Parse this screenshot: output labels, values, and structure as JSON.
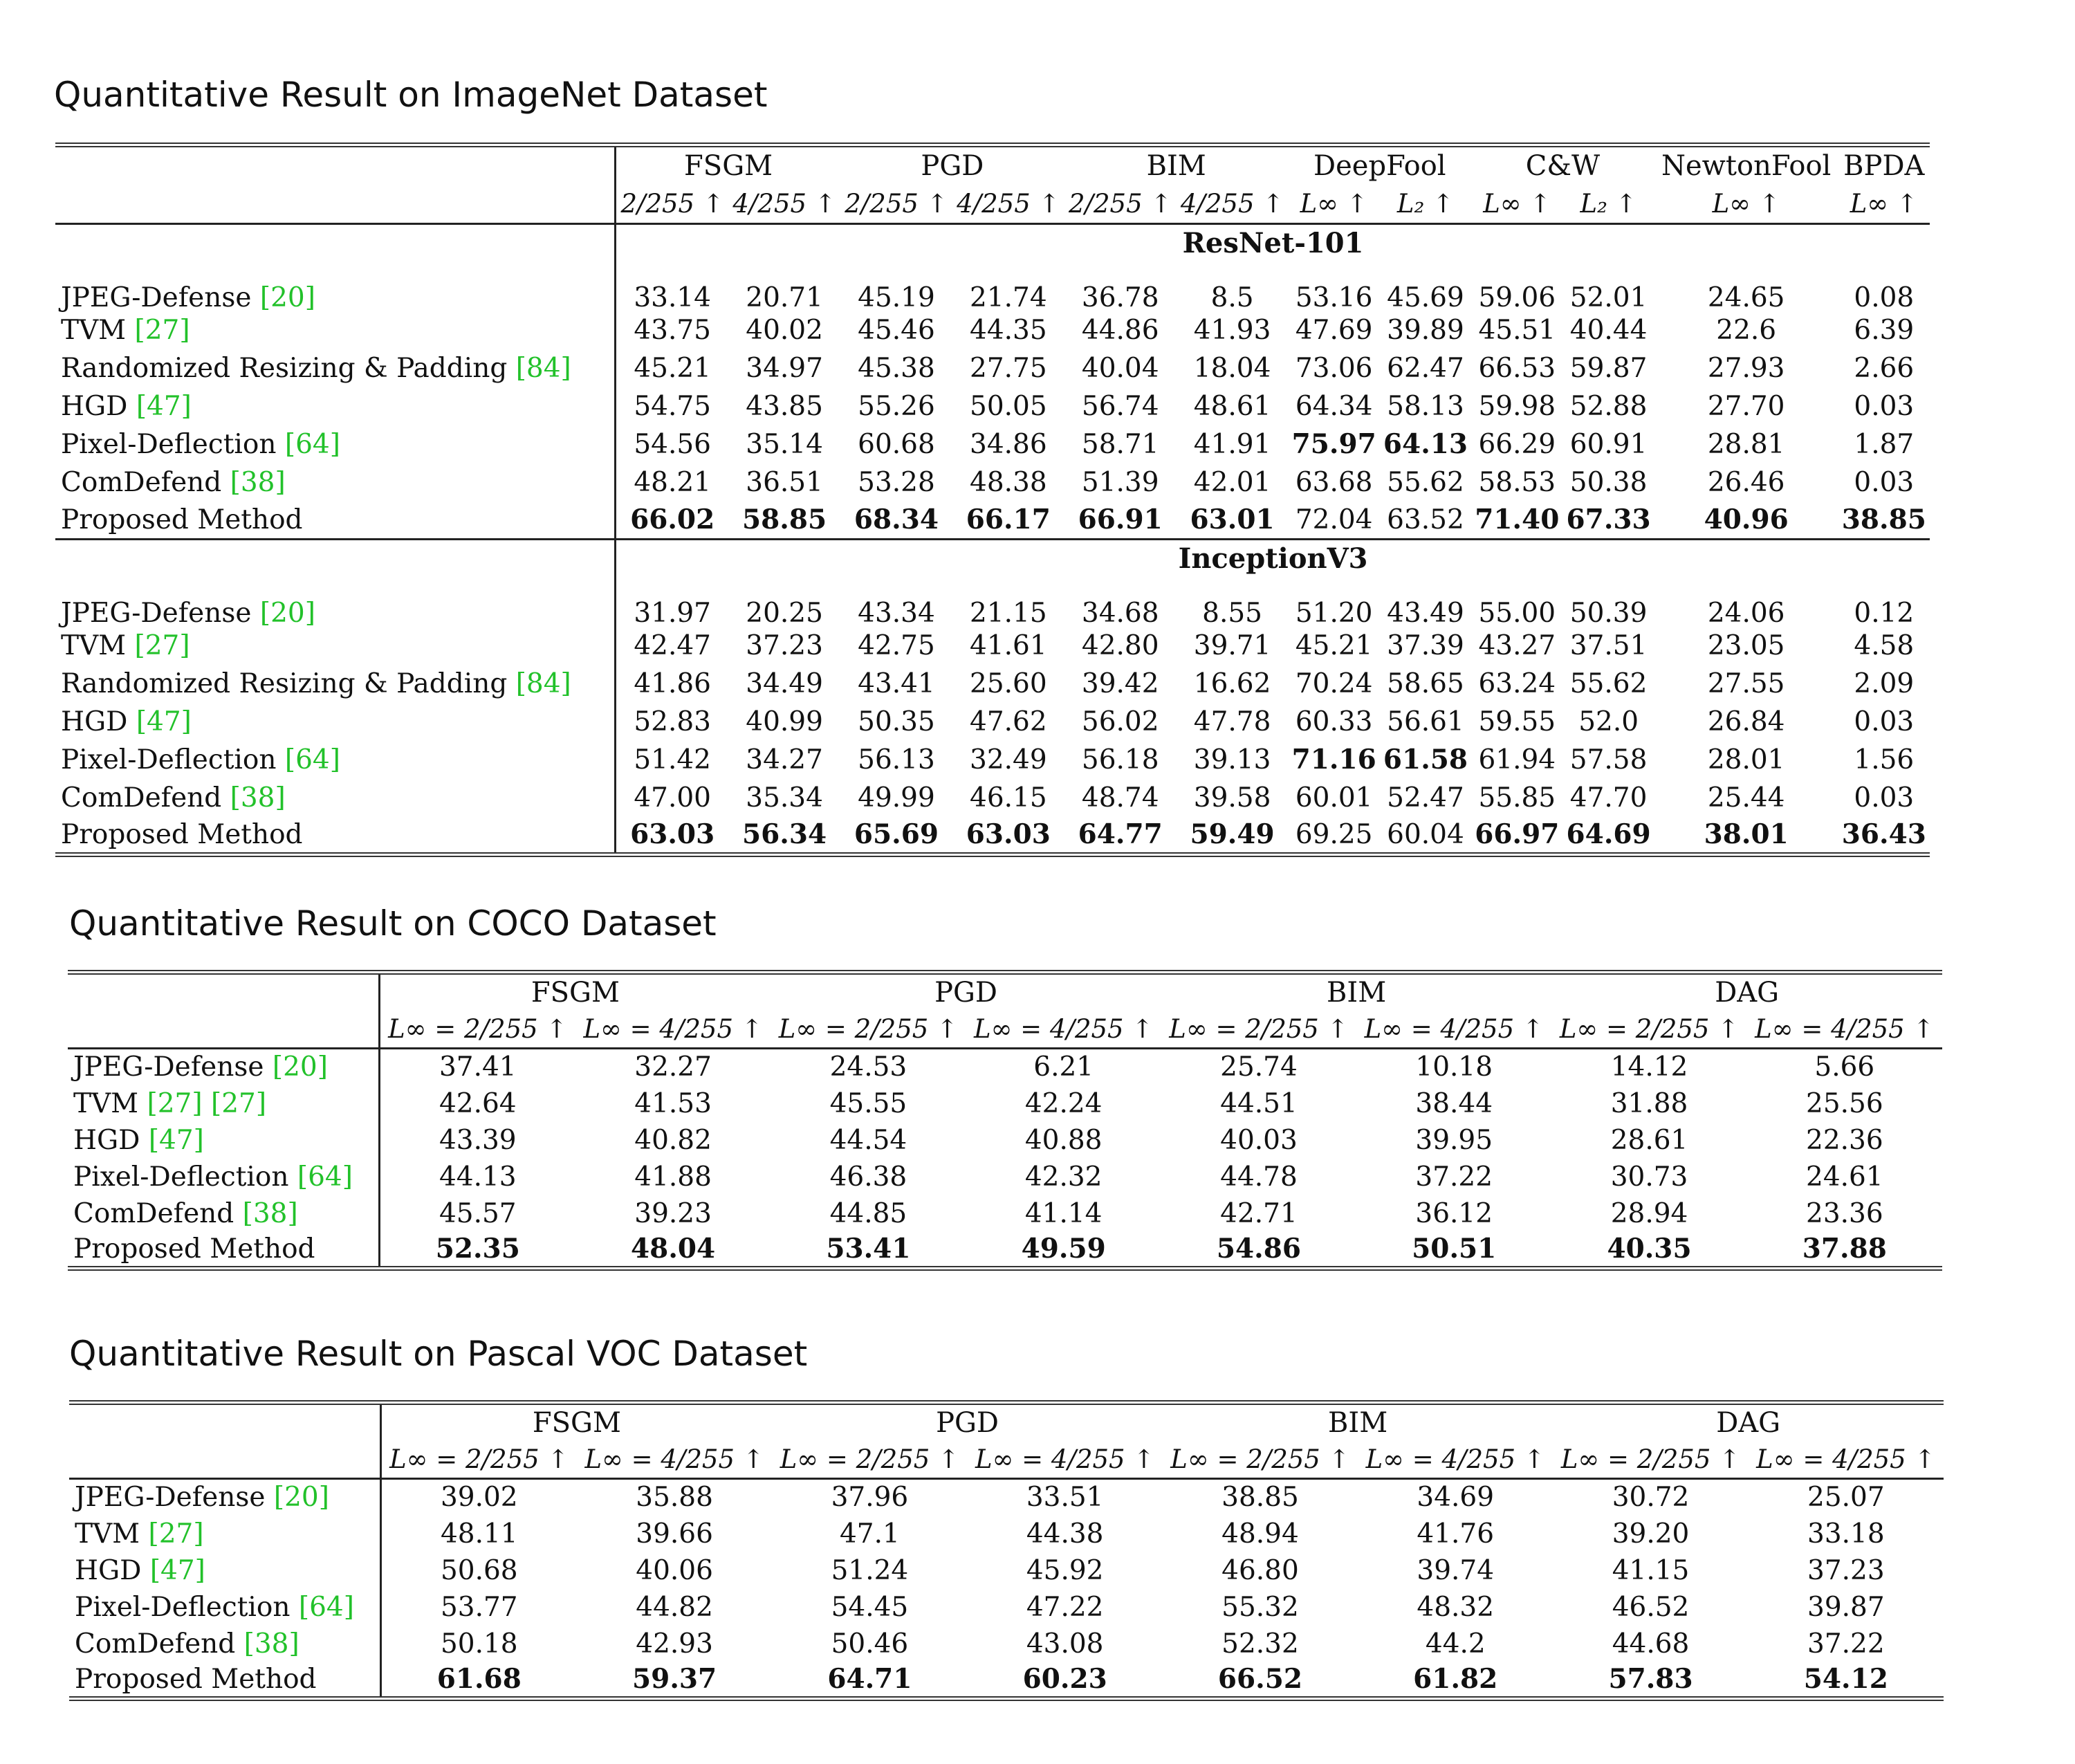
{
  "imagenet": {
    "title": "Quantitative Result on ImageNet Dataset",
    "groups": [
      "FSGM",
      "PGD",
      "BIM",
      "DeepFool",
      "C&W",
      "NewtonFool",
      "BPDA"
    ],
    "subheaders": [
      "2/255 ↑",
      "4/255 ↑",
      "2/255 ↑",
      "4/255 ↑",
      "2/255 ↑",
      "4/255 ↑",
      "L∞ ↑",
      "L₂ ↑",
      "L∞ ↑",
      "L₂ ↑",
      "L∞ ↑",
      "L∞ ↑"
    ],
    "blocks": [
      {
        "name": "ResNet-101",
        "rows": [
          {
            "method": "JPEG-Defense",
            "ref": "[20]",
            "values": [
              "33.14",
              "20.71",
              "45.19",
              "21.74",
              "36.78",
              "8.5",
              "53.16",
              "45.69",
              "59.06",
              "52.01",
              "24.65",
              "0.08"
            ]
          },
          {
            "method": "TVM",
            "ref": "[27]",
            "values": [
              "43.75",
              "40.02",
              "45.46",
              "44.35",
              "44.86",
              "41.93",
              "47.69",
              "39.89",
              "45.51",
              "40.44",
              "22.6",
              "6.39"
            ]
          },
          {
            "method": "Randomized Resizing & Padding",
            "ref": "[84]",
            "values": [
              "45.21",
              "34.97",
              "45.38",
              "27.75",
              "40.04",
              "18.04",
              "73.06",
              "62.47",
              "66.53",
              "59.87",
              "27.93",
              "2.66"
            ]
          },
          {
            "method": "HGD",
            "ref": "[47]",
            "values": [
              "54.75",
              "43.85",
              "55.26",
              "50.05",
              "56.74",
              "48.61",
              "64.34",
              "58.13",
              "59.98",
              "52.88",
              "27.70",
              "0.03"
            ]
          },
          {
            "method": "Pixel-Deflection",
            "ref": "[64]",
            "values": [
              "54.56",
              "35.14",
              "60.68",
              "34.86",
              "58.71",
              "41.91",
              "75.97",
              "64.13",
              "66.29",
              "60.91",
              "28.81",
              "1.87"
            ]
          },
          {
            "method": "ComDefend",
            "ref": "[38]",
            "values": [
              "48.21",
              "36.51",
              "53.28",
              "48.38",
              "51.39",
              "42.01",
              "63.68",
              "55.62",
              "58.53",
              "50.38",
              "26.46",
              "0.03"
            ]
          },
          {
            "method": "Proposed Method",
            "ref": "",
            "values": [
              "66.02",
              "58.85",
              "68.34",
              "66.17",
              "66.91",
              "63.01",
              "72.04",
              "63.52",
              "71.40",
              "67.33",
              "40.96",
              "38.85"
            ]
          }
        ]
      },
      {
        "name": "InceptionV3",
        "rows": [
          {
            "method": "JPEG-Defense",
            "ref": "[20]",
            "values": [
              "31.97",
              "20.25",
              "43.34",
              "21.15",
              "34.68",
              "8.55",
              "51.20",
              "43.49",
              "55.00",
              "50.39",
              "24.06",
              "0.12"
            ]
          },
          {
            "method": "TVM",
            "ref": "[27]",
            "values": [
              "42.47",
              "37.23",
              "42.75",
              "41.61",
              "42.80",
              "39.71",
              "45.21",
              "37.39",
              "43.27",
              "37.51",
              "23.05",
              "4.58"
            ]
          },
          {
            "method": "Randomized Resizing & Padding",
            "ref": "[84]",
            "values": [
              "41.86",
              "34.49",
              "43.41",
              "25.60",
              "39.42",
              "16.62",
              "70.24",
              "58.65",
              "63.24",
              "55.62",
              "27.55",
              "2.09"
            ]
          },
          {
            "method": "HGD",
            "ref": "[47]",
            "values": [
              "52.83",
              "40.99",
              "50.35",
              "47.62",
              "56.02",
              "47.78",
              "60.33",
              "56.61",
              "59.55",
              "52.0",
              "26.84",
              "0.03"
            ]
          },
          {
            "method": "Pixel-Deflection",
            "ref": "[64]",
            "values": [
              "51.42",
              "34.27",
              "56.13",
              "32.49",
              "56.18",
              "39.13",
              "71.16",
              "61.58",
              "61.94",
              "57.58",
              "28.01",
              "1.56"
            ]
          },
          {
            "method": "ComDefend",
            "ref": "[38]",
            "values": [
              "47.00",
              "35.34",
              "49.99",
              "46.15",
              "48.74",
              "39.58",
              "60.01",
              "52.47",
              "55.85",
              "47.70",
              "25.44",
              "0.03"
            ]
          },
          {
            "method": "Proposed Method",
            "ref": "",
            "values": [
              "63.03",
              "56.34",
              "65.69",
              "63.03",
              "64.77",
              "59.49",
              "69.25",
              "60.04",
              "66.97",
              "64.69",
              "38.01",
              "36.43"
            ]
          }
        ]
      }
    ]
  },
  "coco": {
    "title": "Quantitative Result on COCO Dataset",
    "groups": [
      "FSGM",
      "PGD",
      "BIM",
      "DAG"
    ],
    "subheaders": [
      "L∞ = 2/255 ↑",
      "L∞ = 4/255 ↑",
      "L∞ = 2/255 ↑",
      "L∞ = 4/255 ↑",
      "L∞ = 2/255 ↑",
      "L∞ = 4/255 ↑",
      "L∞ = 2/255 ↑",
      "L∞ = 4/255 ↑"
    ],
    "rows": [
      {
        "method": "JPEG-Defense",
        "ref": "[20]",
        "values": [
          "37.41",
          "32.27",
          "24.53",
          "6.21",
          "25.74",
          "10.18",
          "14.12",
          "5.66"
        ]
      },
      {
        "method": "TVM",
        "ref": "[27] [27]",
        "values": [
          "42.64",
          "41.53",
          "45.55",
          "42.24",
          "44.51",
          "38.44",
          "31.88",
          "25.56"
        ]
      },
      {
        "method": "HGD",
        "ref": "[47]",
        "values": [
          "43.39",
          "40.82",
          "44.54",
          "40.88",
          "40.03",
          "39.95",
          "28.61",
          "22.36"
        ]
      },
      {
        "method": "Pixel-Deflection",
        "ref": "[64]",
        "values": [
          "44.13",
          "41.88",
          "46.38",
          "42.32",
          "44.78",
          "37.22",
          "30.73",
          "24.61"
        ]
      },
      {
        "method": "ComDefend",
        "ref": "[38]",
        "values": [
          "45.57",
          "39.23",
          "44.85",
          "41.14",
          "42.71",
          "36.12",
          "28.94",
          "23.36"
        ]
      },
      {
        "method": "Proposed Method",
        "ref": "",
        "values": [
          "52.35",
          "48.04",
          "53.41",
          "49.59",
          "54.86",
          "50.51",
          "40.35",
          "37.88"
        ]
      }
    ]
  },
  "voc": {
    "title": "Quantitative Result on Pascal VOC Dataset",
    "groups": [
      "FSGM",
      "PGD",
      "BIM",
      "DAG"
    ],
    "subheaders": [
      "L∞ = 2/255 ↑",
      "L∞ = 4/255 ↑",
      "L∞ = 2/255 ↑",
      "L∞ = 4/255 ↑",
      "L∞ = 2/255 ↑",
      "L∞ = 4/255 ↑",
      "L∞ = 2/255 ↑",
      "L∞ = 4/255 ↑"
    ],
    "rows": [
      {
        "method": "JPEG-Defense",
        "ref": "[20]",
        "values": [
          "39.02",
          "35.88",
          "37.96",
          "33.51",
          "38.85",
          "34.69",
          "30.72",
          "25.07"
        ]
      },
      {
        "method": "TVM",
        "ref": "[27]",
        "values": [
          "48.11",
          "39.66",
          "47.1",
          "44.38",
          "48.94",
          "41.76",
          "39.20",
          "33.18"
        ]
      },
      {
        "method": "HGD",
        "ref": "[47]",
        "values": [
          "50.68",
          "40.06",
          "51.24",
          "45.92",
          "46.80",
          "39.74",
          "41.15",
          "37.23"
        ]
      },
      {
        "method": "Pixel-Deflection",
        "ref": "[64]",
        "values": [
          "53.77",
          "44.82",
          "54.45",
          "47.22",
          "55.32",
          "48.32",
          "46.52",
          "39.87"
        ]
      },
      {
        "method": "ComDefend",
        "ref": "[38]",
        "values": [
          "50.18",
          "42.93",
          "50.46",
          "43.08",
          "52.32",
          "44.2",
          "44.68",
          "37.22"
        ]
      },
      {
        "method": "Proposed Method",
        "ref": "",
        "values": [
          "61.68",
          "59.37",
          "64.71",
          "60.23",
          "66.52",
          "61.82",
          "57.83",
          "54.12"
        ]
      }
    ]
  }
}
